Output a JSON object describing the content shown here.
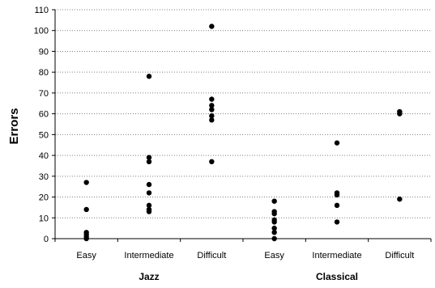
{
  "chart_data": {
    "type": "scatter",
    "title": "",
    "xlabel": "",
    "ylabel": "Errors",
    "ylim": [
      0,
      110
    ],
    "yticks": [
      0,
      10,
      20,
      30,
      40,
      50,
      60,
      70,
      80,
      90,
      100,
      110
    ],
    "grid": "horizontal-dotted",
    "legend": "none",
    "point_color": "#000000",
    "grid_color": "#808080",
    "categories": [
      "Easy",
      "Intermediate",
      "Difficult",
      "Easy",
      "Intermediate",
      "Difficult"
    ],
    "groups": [
      {
        "label": "Jazz",
        "categories": [
          0,
          1,
          2
        ]
      },
      {
        "label": "Classical",
        "categories": [
          3,
          4,
          5
        ]
      }
    ],
    "series": [
      {
        "values": [
          [
            27,
            14,
            3,
            2,
            1,
            0
          ],
          [
            78,
            39,
            37,
            26,
            22,
            16,
            14,
            13
          ],
          [
            102,
            67,
            64,
            62,
            59,
            57,
            37
          ],
          [
            18,
            13,
            12,
            9,
            8,
            5,
            3,
            0
          ],
          [
            46,
            22,
            21,
            16,
            8
          ],
          [
            61,
            60,
            19
          ]
        ]
      }
    ]
  }
}
